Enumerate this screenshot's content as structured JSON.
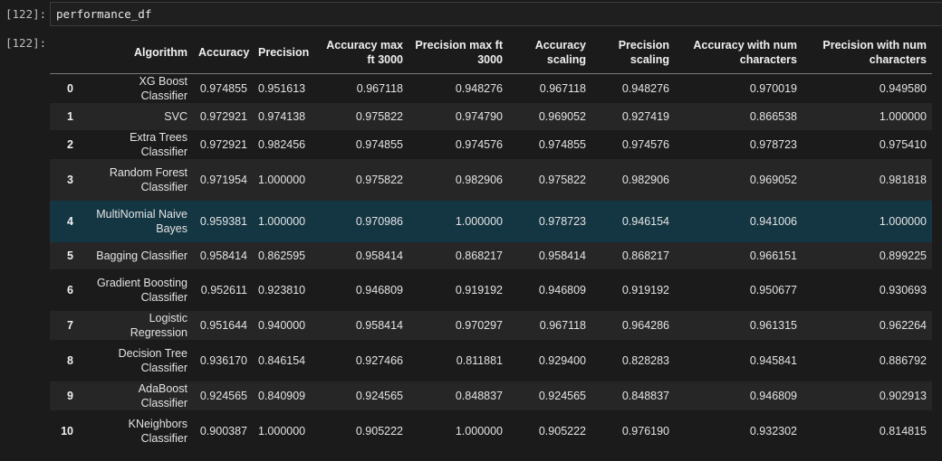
{
  "cell": {
    "input_prompt": "[122]:",
    "code": "performance_df",
    "output_prompt": "[122]:"
  },
  "table": {
    "columns": [
      "",
      "Algorithm",
      "Accuracy",
      "Precision",
      "Accuracy max ft 3000",
      "Precision max ft 3000",
      "Accuracy scaling",
      "Precision scaling",
      "Accuracy with num characters",
      "Precision with num characters"
    ],
    "rows": [
      {
        "index": "0",
        "algorithm": "XG Boost Classifier",
        "values": [
          "0.974855",
          "0.951613",
          "0.967118",
          "0.948276",
          "0.967118",
          "0.948276",
          "0.970019",
          "0.949580"
        ]
      },
      {
        "index": "1",
        "algorithm": "SVC",
        "values": [
          "0.972921",
          "0.974138",
          "0.975822",
          "0.974790",
          "0.969052",
          "0.927419",
          "0.866538",
          "1.000000"
        ]
      },
      {
        "index": "2",
        "algorithm": "Extra Trees Classifier",
        "values": [
          "0.972921",
          "0.982456",
          "0.974855",
          "0.974576",
          "0.974855",
          "0.974576",
          "0.978723",
          "0.975410"
        ]
      },
      {
        "index": "3",
        "algorithm": "Random Forest Classifier",
        "values": [
          "0.971954",
          "1.000000",
          "0.975822",
          "0.982906",
          "0.975822",
          "0.982906",
          "0.969052",
          "0.981818"
        ]
      },
      {
        "index": "4",
        "algorithm": "MultiNomial Naive Bayes",
        "values": [
          "0.959381",
          "1.000000",
          "0.970986",
          "1.000000",
          "0.978723",
          "0.946154",
          "0.941006",
          "1.000000"
        ]
      },
      {
        "index": "5",
        "algorithm": "Bagging Classifier",
        "values": [
          "0.958414",
          "0.862595",
          "0.958414",
          "0.868217",
          "0.958414",
          "0.868217",
          "0.966151",
          "0.899225"
        ]
      },
      {
        "index": "6",
        "algorithm": "Gradient Boosting Classifier",
        "values": [
          "0.952611",
          "0.923810",
          "0.946809",
          "0.919192",
          "0.946809",
          "0.919192",
          "0.950677",
          "0.930693"
        ]
      },
      {
        "index": "7",
        "algorithm": "Logistic Regression",
        "values": [
          "0.951644",
          "0.940000",
          "0.958414",
          "0.970297",
          "0.967118",
          "0.964286",
          "0.961315",
          "0.962264"
        ]
      },
      {
        "index": "8",
        "algorithm": "Decision Tree Classifier",
        "values": [
          "0.936170",
          "0.846154",
          "0.927466",
          "0.811881",
          "0.929400",
          "0.828283",
          "0.945841",
          "0.886792"
        ]
      },
      {
        "index": "9",
        "algorithm": "AdaBoost Classifier",
        "values": [
          "0.924565",
          "0.840909",
          "0.924565",
          "0.848837",
          "0.924565",
          "0.848837",
          "0.946809",
          "0.902913"
        ]
      },
      {
        "index": "10",
        "algorithm": "KNeighbors Classifier",
        "values": [
          "0.900387",
          "1.000000",
          "0.905222",
          "1.000000",
          "0.905222",
          "0.976190",
          "0.932302",
          "0.814815"
        ]
      }
    ]
  }
}
